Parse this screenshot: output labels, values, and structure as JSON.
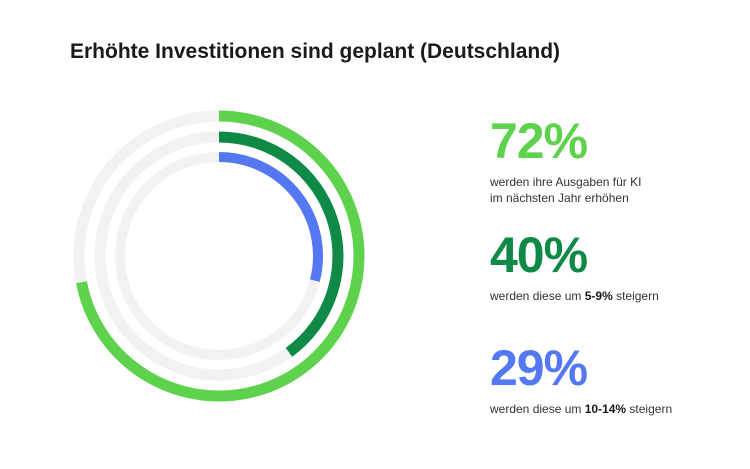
{
  "title": "Erhöhte Investitionen sind geplant (Deutschland)",
  "chart_data": {
    "type": "radial-bar",
    "title": "Erhöhte Investitionen sind geplant (Deutschland)",
    "max": 100,
    "series": [
      {
        "value": 72,
        "label": "72%",
        "color": "#5ed24d",
        "desc_line1": "werden ihre Ausgaben für KI",
        "desc_line2": "im nächsten Jahr erhöhen"
      },
      {
        "value": 40,
        "label": "40%",
        "color": "#0f8a46",
        "desc_pre": "werden diese um ",
        "desc_bold": "5-9%",
        "desc_post": " steigern"
      },
      {
        "value": 29,
        "label": "29%",
        "color": "#5477f2",
        "desc_pre": "werden diese um ",
        "desc_bold": "10-14%",
        "desc_post": " steigern"
      }
    ],
    "track_color": "#f2f2f2"
  }
}
